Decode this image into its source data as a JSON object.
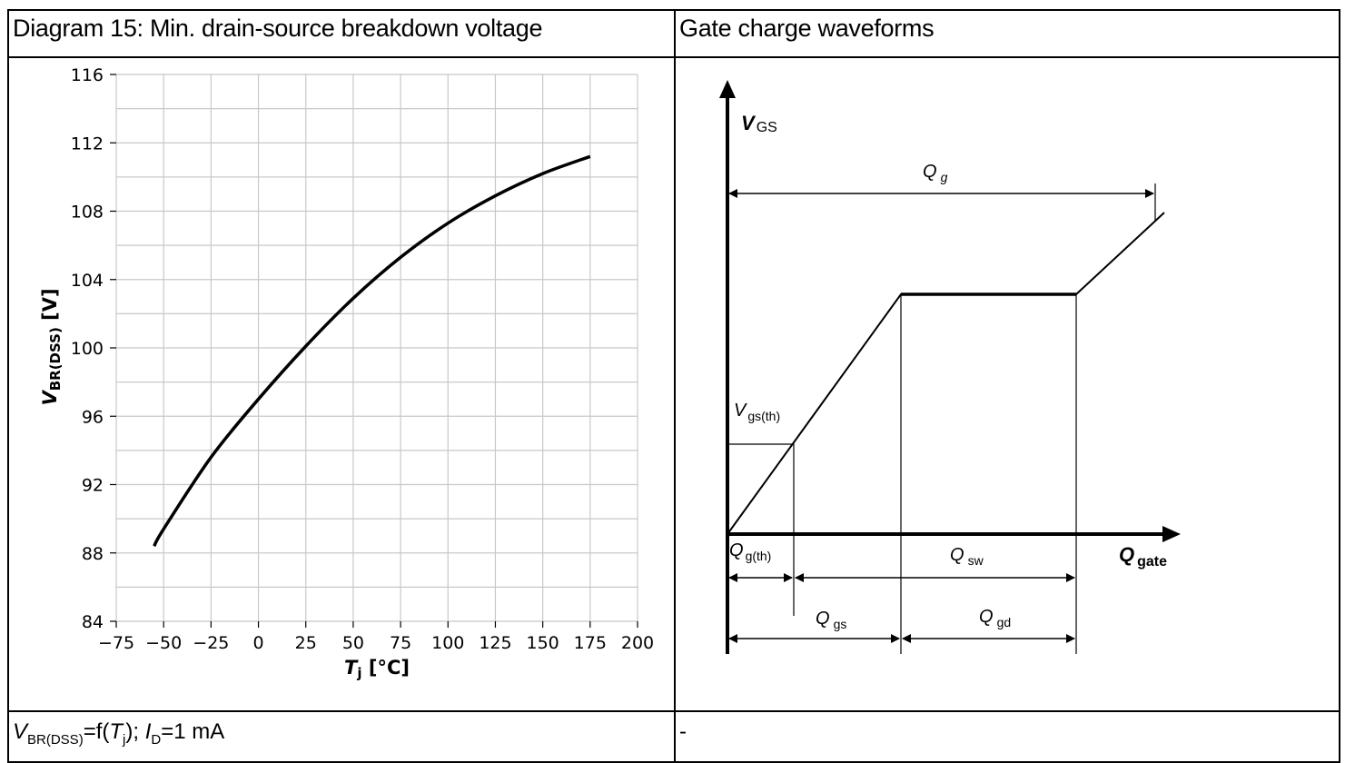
{
  "left_panel": {
    "title": "Diagram 15: Min. drain-source breakdown voltage",
    "caption": {
      "v_sym": "V",
      "v_sub": "BR(DSS)",
      "eq1": "=f(",
      "t_sym": "T",
      "t_sub": "j",
      "eq2": "); ",
      "i_sym": "I",
      "i_sub": "D",
      "eq3": "=1 mA"
    }
  },
  "right_panel": {
    "title": "Gate charge waveforms",
    "caption": "-"
  },
  "chart_data": [
    {
      "type": "line",
      "title": "",
      "xlabel": {
        "sym": "T",
        "sub": "j",
        "unit": " [°C]"
      },
      "ylabel": {
        "sym": "V",
        "sub": "BR(DSS)",
        "unit": " [V]"
      },
      "xlim": [
        -75,
        200
      ],
      "ylim": [
        84,
        116
      ],
      "x_ticks": [
        -75,
        -50,
        -25,
        0,
        25,
        50,
        75,
        100,
        125,
        150,
        175,
        200
      ],
      "x_tick_labels": [
        "−75",
        "−50",
        "−25",
        "0",
        "25",
        "50",
        "75",
        "100",
        "125",
        "150",
        "175",
        "200"
      ],
      "y_ticks": [
        84,
        88,
        92,
        96,
        100,
        104,
        108,
        112,
        116
      ],
      "grid": true,
      "series": [
        {
          "x": [
            -55,
            -50,
            -25,
            0,
            25,
            50,
            75,
            100,
            125,
            150,
            175
          ],
          "y": [
            88.4,
            89.4,
            93.6,
            97.0,
            100.1,
            102.9,
            105.3,
            107.3,
            108.9,
            110.2,
            111.2
          ]
        }
      ]
    },
    {
      "type": "diagram",
      "labels": {
        "vgs": {
          "main": "V",
          "sub": "GS"
        },
        "qg": {
          "main": "Q",
          "sub": "g"
        },
        "vgs_th": {
          "main": "V",
          "sub": "gs(th)"
        },
        "qg_th": {
          "main": "Q",
          "sub": "g(th)"
        },
        "qsw": {
          "main": "Q",
          "sub": "sw"
        },
        "qgate": {
          "main": "Q",
          "sub": "gate"
        },
        "qgs": {
          "main": "Q",
          "sub": "gs"
        },
        "qgd": {
          "main": "Q",
          "sub": "gd"
        }
      }
    }
  ]
}
